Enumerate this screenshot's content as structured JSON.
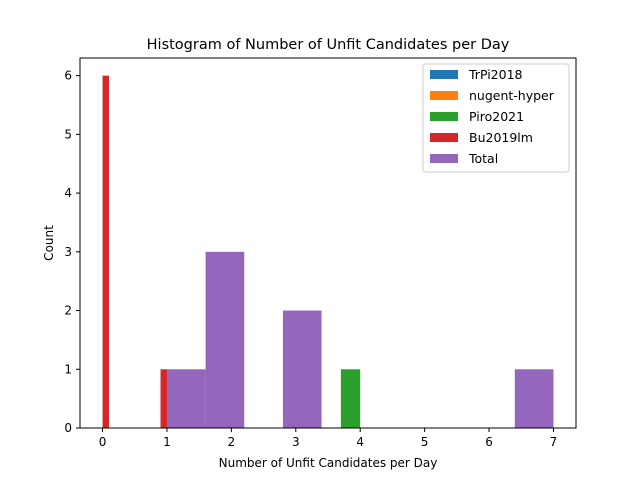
{
  "chart_data": {
    "type": "bar",
    "title": "Histogram of Number of Unfit Candidates per Day",
    "xlabel": "Number of Unfit Candidates per Day",
    "ylabel": "Count",
    "xlim": [
      -0.35,
      7.35
    ],
    "ylim": [
      0,
      6.3
    ],
    "xticks": [
      0,
      1,
      2,
      3,
      4,
      5,
      6,
      7
    ],
    "yticks": [
      0,
      1,
      2,
      3,
      4,
      5,
      6
    ],
    "legend_position": "top-right",
    "series": [
      {
        "name": "TrPi2018",
        "color": "#1f77b4",
        "bars": []
      },
      {
        "name": "nugent-hyper",
        "color": "#ff7f0e",
        "bars": []
      },
      {
        "name": "Piro2021",
        "color": "#2ca02c",
        "bars": [
          {
            "x0": 3.7,
            "x1": 4.0,
            "value": 1
          }
        ]
      },
      {
        "name": "Bu2019lm",
        "color": "#d62728",
        "bars": [
          {
            "x0": 0.0,
            "x1": 0.1,
            "value": 6
          },
          {
            "x0": 0.9,
            "x1": 1.0,
            "value": 1
          }
        ]
      },
      {
        "name": "Total",
        "color": "#9467bd",
        "bars": [
          {
            "x0": 1.0,
            "x1": 1.6,
            "value": 1
          },
          {
            "x0": 1.6,
            "x1": 2.2,
            "value": 3
          },
          {
            "x0": 2.8,
            "x1": 3.4,
            "value": 2
          },
          {
            "x0": 6.4,
            "x1": 7.0,
            "value": 1
          }
        ]
      }
    ]
  }
}
